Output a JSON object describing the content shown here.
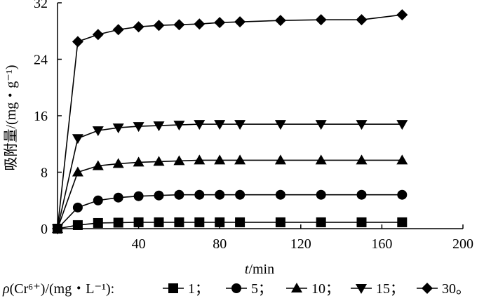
{
  "chart_data": {
    "type": "line",
    "xlabel_italic": "t",
    "xlabel_rest": "/min",
    "ylabel": "吸附量/(mg・g⁻¹)",
    "xlim": [
      0,
      200
    ],
    "ylim": [
      0,
      32
    ],
    "x_ticks": [
      "40",
      "80",
      "120",
      "160",
      "200"
    ],
    "y_ticks": [
      "0",
      "8",
      "16",
      "24",
      "32"
    ],
    "legend": {
      "prefix_italic": "ρ",
      "prefix_rest": "(Cr⁶⁺)/(mg・L⁻¹):",
      "end_mark": "。"
    },
    "x": [
      0,
      10,
      20,
      30,
      40,
      50,
      60,
      70,
      80,
      90,
      110,
      130,
      150,
      170
    ],
    "series": [
      {
        "name": "1",
        "marker": "square",
        "values": [
          0,
          0.5,
          0.8,
          0.85,
          0.9,
          0.9,
          0.9,
          0.9,
          0.9,
          0.9,
          0.9,
          0.9,
          0.9,
          0.9
        ]
      },
      {
        "name": "5",
        "marker": "circle",
        "values": [
          0,
          3.0,
          4.0,
          4.4,
          4.6,
          4.7,
          4.8,
          4.8,
          4.8,
          4.8,
          4.8,
          4.8,
          4.8,
          4.8
        ]
      },
      {
        "name": "10",
        "marker": "triangle-up",
        "values": [
          0,
          8.0,
          8.9,
          9.2,
          9.4,
          9.5,
          9.6,
          9.7,
          9.7,
          9.7,
          9.7,
          9.7,
          9.7,
          9.7
        ]
      },
      {
        "name": "15",
        "marker": "triangle-down",
        "values": [
          0,
          12.8,
          13.9,
          14.3,
          14.5,
          14.6,
          14.7,
          14.8,
          14.8,
          14.8,
          14.8,
          14.8,
          14.8,
          14.8
        ]
      },
      {
        "name": "30",
        "marker": "diamond",
        "values": [
          0,
          26.5,
          27.5,
          28.2,
          28.6,
          28.8,
          28.9,
          29.0,
          29.2,
          29.3,
          29.5,
          29.6,
          29.6,
          30.3
        ]
      }
    ]
  }
}
